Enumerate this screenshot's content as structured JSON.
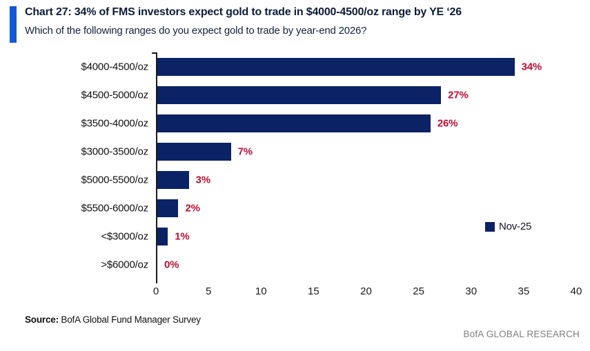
{
  "header": {
    "title": "Chart 27: 34% of FMS investors expect gold to trade in $4000-4500/oz range by YE ‘26",
    "subtitle": "Which of the following ranges do you expect gold to trade by year-end 2026?"
  },
  "chart_data": {
    "type": "bar",
    "orientation": "horizontal",
    "title": "Chart 27: 34% of FMS investors expect gold to trade in $4000-4500/oz range by YE ‘26",
    "subtitle": "Which of the following ranges do you expect gold to trade by year-end 2026?",
    "categories": [
      "$4000-4500/oz",
      "$4500-5000/oz",
      "$3500-4000/oz",
      "$3000-3500/oz",
      "$5000-5500/oz",
      "$5500-6000/oz",
      "<$3000/oz",
      ">$6000/oz"
    ],
    "values": [
      34,
      27,
      26,
      7,
      3,
      2,
      1,
      0
    ],
    "value_labels": [
      "34%",
      "27%",
      "26%",
      "7%",
      "3%",
      "2%",
      "1%",
      "0%"
    ],
    "series_name": "Nov-25",
    "xlim": [
      0,
      40
    ],
    "x_ticks": [
      "0",
      "5",
      "10",
      "15",
      "20",
      "25",
      "30",
      "35",
      "40"
    ],
    "grid": false,
    "legend_position": "right-middle",
    "bar_color": "#0B2265",
    "value_label_color": "#BE0D34"
  },
  "legend": {
    "label": "Nov-25",
    "swatch_color": "#0B2265"
  },
  "footer": {
    "source_label": "Source:",
    "source_text": " BofA Global Fund Manager Survey",
    "brand": "BofA GLOBAL RESEARCH"
  },
  "colors": {
    "accent_bar": "#0D5BD8",
    "title_text": "#0C1C38",
    "axis_line": "#1a1a1a"
  }
}
